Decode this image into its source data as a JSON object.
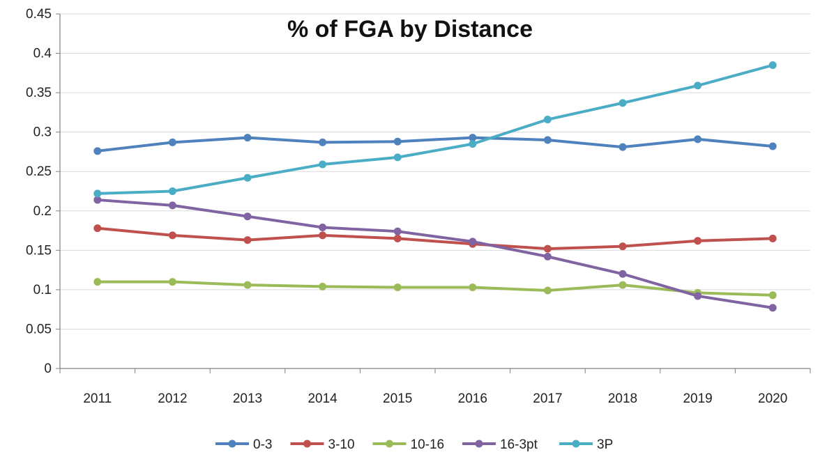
{
  "chart_data": {
    "type": "line",
    "title": "% of FGA by Distance",
    "xlabel": "",
    "ylabel": "",
    "ylim": [
      0,
      0.45
    ],
    "yticks": [
      "0",
      "0.05",
      "0.1",
      "0.15",
      "0.2",
      "0.25",
      "0.3",
      "0.35",
      "0.4",
      "0.45"
    ],
    "categories": [
      "2011",
      "2012",
      "2013",
      "2014",
      "2015",
      "2016",
      "2017",
      "2018",
      "2019",
      "2020"
    ],
    "grid": true,
    "legend_position": "bottom",
    "series": [
      {
        "name": "0-3",
        "color": "#4F81BD",
        "values": [
          0.276,
          0.287,
          0.293,
          0.287,
          0.288,
          0.293,
          0.29,
          0.281,
          0.291,
          0.282
        ]
      },
      {
        "name": "3-10",
        "color": "#C0504D",
        "values": [
          0.178,
          0.169,
          0.163,
          0.169,
          0.165,
          0.158,
          0.152,
          0.155,
          0.162,
          0.165
        ]
      },
      {
        "name": "10-16",
        "color": "#9BBB59",
        "values": [
          0.11,
          0.11,
          0.106,
          0.104,
          0.103,
          0.103,
          0.099,
          0.106,
          0.096,
          0.093
        ]
      },
      {
        "name": "16-3pt",
        "color": "#8064A2",
        "values": [
          0.214,
          0.207,
          0.193,
          0.179,
          0.174,
          0.161,
          0.142,
          0.12,
          0.092,
          0.077
        ]
      },
      {
        "name": "3P",
        "color": "#4BACC6",
        "values": [
          0.222,
          0.225,
          0.242,
          0.259,
          0.268,
          0.285,
          0.316,
          0.337,
          0.359,
          0.385
        ]
      }
    ]
  }
}
